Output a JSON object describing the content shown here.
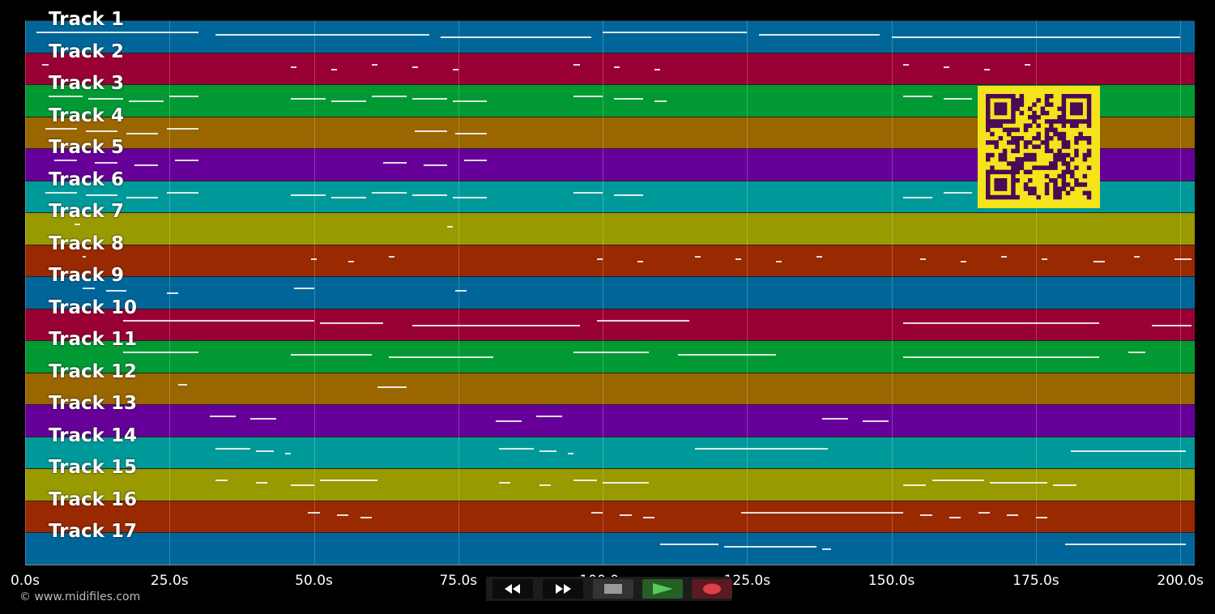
{
  "tracks": [
    {
      "label": "Track 1",
      "color": "#006699"
    },
    {
      "label": "Track 2",
      "color": "#990033"
    },
    {
      "label": "Track 3",
      "color": "#009933"
    },
    {
      "label": "Track 4",
      "color": "#996600"
    },
    {
      "label": "Track 5",
      "color": "#660099"
    },
    {
      "label": "Track 6",
      "color": "#009999"
    },
    {
      "label": "Track 7",
      "color": "#999900"
    },
    {
      "label": "Track 8",
      "color": "#992900"
    },
    {
      "label": "Track 9",
      "color": "#006699"
    },
    {
      "label": "Track 10",
      "color": "#990033"
    },
    {
      "label": "Track 11",
      "color": "#009933"
    },
    {
      "label": "Track 12",
      "color": "#996600"
    },
    {
      "label": "Track 13",
      "color": "#660099"
    },
    {
      "label": "Track 14",
      "color": "#009999"
    },
    {
      "label": "Track 15",
      "color": "#999900"
    },
    {
      "label": "Track 16",
      "color": "#992900"
    },
    {
      "label": "Track 17",
      "color": "#006699"
    }
  ],
  "time_axis": {
    "range_seconds": [
      0,
      202.5
    ],
    "ticks": [
      {
        "value": 0,
        "label": "0.0s"
      },
      {
        "value": 25,
        "label": "25.0s"
      },
      {
        "value": 50,
        "label": "50.0s"
      },
      {
        "value": 75,
        "label": "75.0s"
      },
      {
        "value": 100,
        "label": "100.0s"
      },
      {
        "value": 125,
        "label": "125.0s"
      },
      {
        "value": 150,
        "label": "150.0s"
      },
      {
        "value": 175,
        "label": "175.0s"
      },
      {
        "value": 200,
        "label": "200.0s"
      }
    ]
  },
  "notes": [
    {
      "track": 0,
      "segments": [
        [
          2,
          30
        ],
        [
          33,
          70
        ],
        [
          72,
          98
        ],
        [
          100,
          125
        ],
        [
          127,
          148
        ],
        [
          150,
          200
        ]
      ]
    },
    {
      "track": 1,
      "segments": [
        [
          3,
          4
        ],
        [
          46,
          47
        ],
        [
          53,
          54
        ],
        [
          60,
          61
        ],
        [
          67,
          68
        ],
        [
          74,
          75
        ],
        [
          95,
          96
        ],
        [
          102,
          103
        ],
        [
          109,
          110
        ],
        [
          152,
          153
        ],
        [
          159,
          160
        ],
        [
          166,
          167
        ],
        [
          173,
          174
        ]
      ]
    },
    {
      "track": 2,
      "segments": [
        [
          4,
          10
        ],
        [
          11,
          17
        ],
        [
          18,
          24
        ],
        [
          25,
          30
        ],
        [
          46,
          52
        ],
        [
          53,
          59
        ],
        [
          60,
          66
        ],
        [
          67,
          73
        ],
        [
          74,
          80
        ],
        [
          95,
          100
        ],
        [
          102,
          107
        ],
        [
          109,
          111
        ],
        [
          152,
          157
        ],
        [
          159,
          164
        ]
      ]
    },
    {
      "track": 3,
      "segments": [
        [
          3.5,
          9
        ],
        [
          10.5,
          16
        ],
        [
          17.5,
          23
        ],
        [
          24.5,
          30
        ],
        [
          67.5,
          73
        ],
        [
          74.5,
          80
        ]
      ]
    },
    {
      "track": 4,
      "segments": [
        [
          5,
          9
        ],
        [
          12,
          16
        ],
        [
          19,
          23
        ],
        [
          26,
          30
        ],
        [
          62,
          66
        ],
        [
          69,
          73
        ],
        [
          76,
          80
        ]
      ]
    },
    {
      "track": 5,
      "segments": [
        [
          3.5,
          9
        ],
        [
          10.5,
          16
        ],
        [
          17.5,
          23
        ],
        [
          24.5,
          30
        ],
        [
          46,
          52
        ],
        [
          53,
          59
        ],
        [
          60,
          66
        ],
        [
          67,
          73
        ],
        [
          74,
          80
        ],
        [
          95,
          100
        ],
        [
          102,
          107
        ],
        [
          152,
          157
        ],
        [
          159,
          164
        ]
      ]
    },
    {
      "track": 6,
      "segments": [
        [
          8.5,
          9.5
        ],
        [
          73,
          74
        ]
      ]
    },
    {
      "track": 7,
      "segments": [
        [
          10,
          10.5
        ],
        [
          49.5,
          50.5
        ],
        [
          56,
          57
        ],
        [
          63,
          64
        ],
        [
          99,
          100
        ],
        [
          106,
          107
        ],
        [
          116,
          117
        ],
        [
          123,
          124
        ],
        [
          130,
          131
        ],
        [
          137,
          138
        ],
        [
          155,
          156
        ],
        [
          162,
          163
        ],
        [
          169,
          170
        ],
        [
          176,
          177
        ],
        [
          185,
          187
        ],
        [
          192,
          193
        ],
        [
          199,
          202
        ]
      ]
    },
    {
      "track": 8,
      "segments": [
        [
          10,
          12
        ],
        [
          14,
          17.5
        ],
        [
          24.5,
          26.5
        ],
        [
          46.5,
          50
        ],
        [
          74.5,
          76.5
        ]
      ]
    },
    {
      "track": 9,
      "segments": [
        [
          17,
          50
        ],
        [
          51,
          62
        ],
        [
          67,
          96
        ],
        [
          99,
          115
        ],
        [
          152,
          186
        ],
        [
          195,
          202
        ]
      ]
    },
    {
      "track": 10,
      "segments": [
        [
          17,
          30
        ],
        [
          46,
          60
        ],
        [
          63,
          81
        ],
        [
          95,
          108
        ],
        [
          113,
          130
        ],
        [
          152,
          186
        ],
        [
          191,
          194
        ]
      ]
    },
    {
      "track": 11,
      "segments": [
        [
          26.5,
          28
        ],
        [
          61,
          66
        ]
      ]
    },
    {
      "track": 12,
      "segments": [
        [
          32,
          36.5
        ],
        [
          39,
          43.5
        ],
        [
          81.5,
          86
        ],
        [
          88.5,
          93
        ],
        [
          138,
          142.5
        ],
        [
          145,
          149.5
        ]
      ]
    },
    {
      "track": 13,
      "segments": [
        [
          33,
          39
        ],
        [
          40,
          43
        ],
        [
          45,
          46
        ],
        [
          82,
          88
        ],
        [
          89,
          92
        ],
        [
          94,
          95
        ],
        [
          116,
          139
        ],
        [
          181,
          201
        ]
      ]
    },
    {
      "track": 14,
      "segments": [
        [
          33,
          35
        ],
        [
          40,
          42
        ],
        [
          46,
          50
        ],
        [
          51,
          61
        ],
        [
          82,
          84
        ],
        [
          89,
          91
        ],
        [
          95,
          99
        ],
        [
          100,
          108
        ],
        [
          152,
          156
        ],
        [
          157,
          166
        ],
        [
          167,
          177
        ],
        [
          178,
          182
        ]
      ]
    },
    {
      "track": 15,
      "segments": [
        [
          49,
          51
        ],
        [
          54,
          56
        ],
        [
          58,
          60
        ],
        [
          98,
          100
        ],
        [
          103,
          105
        ],
        [
          107,
          109
        ],
        [
          124,
          152
        ],
        [
          155,
          157
        ],
        [
          160,
          162
        ],
        [
          165,
          167
        ],
        [
          170,
          172
        ],
        [
          175,
          177
        ]
      ]
    },
    {
      "track": 16,
      "segments": [
        [
          110,
          120
        ],
        [
          121,
          137
        ],
        [
          138,
          139.5
        ],
        [
          180,
          201
        ]
      ]
    }
  ],
  "controls": {
    "rewind": {
      "icon": "rewind-icon",
      "color": "#ffffff"
    },
    "fast_forward": {
      "icon": "fast-forward-icon",
      "color": "#ffffff"
    },
    "stop": {
      "icon": "stop-icon",
      "color": "#999999"
    },
    "play": {
      "icon": "play-icon",
      "color": "#5ac85a"
    },
    "record": {
      "icon": "record-icon",
      "color": "#e0404a"
    }
  },
  "copyright": "© www.midifiles.com",
  "qr_color": "#f5e41c"
}
